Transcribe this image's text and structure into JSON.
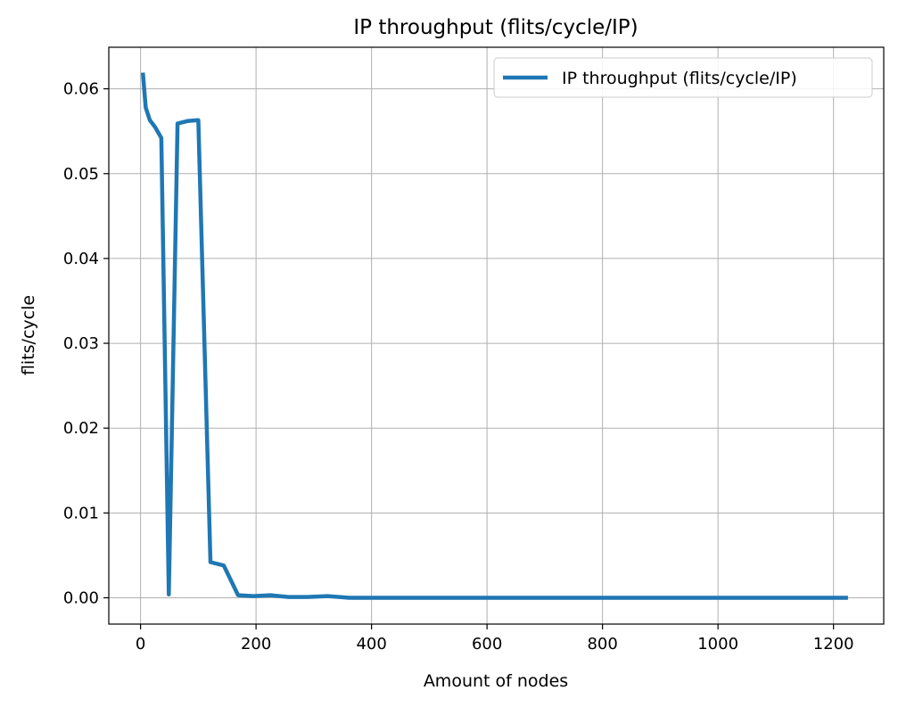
{
  "chart_data": {
    "type": "line",
    "title": "IP throughput (flits/cycle/IP)",
    "xlabel": "Amount of nodes",
    "ylabel": "flits/cycle",
    "xlim": [
      -55,
      1287
    ],
    "ylim": [
      -0.0031,
      0.0649
    ],
    "xticks": [
      0,
      200,
      400,
      600,
      800,
      1000,
      1200
    ],
    "yticks": [
      0.0,
      0.01,
      0.02,
      0.03,
      0.04,
      0.05,
      0.06
    ],
    "xtick_labels": [
      "0",
      "200",
      "400",
      "600",
      "800",
      "1000",
      "1200"
    ],
    "ytick_labels": [
      "0.00",
      "0.01",
      "0.02",
      "0.03",
      "0.04",
      "0.05",
      "0.06"
    ],
    "grid": true,
    "legend_position": "top-right",
    "series": [
      {
        "name": "IP throughput (flits/cycle/IP)",
        "color": "#1f77b4",
        "x": [
          4,
          9,
          16,
          25,
          36,
          49,
          64,
          81,
          100,
          121,
          144,
          169,
          196,
          225,
          256,
          289,
          324,
          361,
          400,
          441,
          484,
          529,
          576,
          625,
          676,
          729,
          784,
          841,
          900,
          961,
          1024,
          1089,
          1156,
          1225
        ],
        "y": [
          0.0619,
          0.0578,
          0.0563,
          0.0555,
          0.0542,
          0.0004,
          0.0559,
          0.0562,
          0.0563,
          0.0042,
          0.0038,
          0.0003,
          0.0002,
          0.0003,
          0.0001,
          0.0001,
          0.0002,
          0.0,
          0.0,
          0.0,
          0.0,
          0.0,
          0.0,
          0.0,
          0.0,
          0.0,
          0.0,
          0.0,
          0.0,
          0.0,
          0.0,
          0.0,
          0.0,
          0.0
        ]
      }
    ]
  }
}
